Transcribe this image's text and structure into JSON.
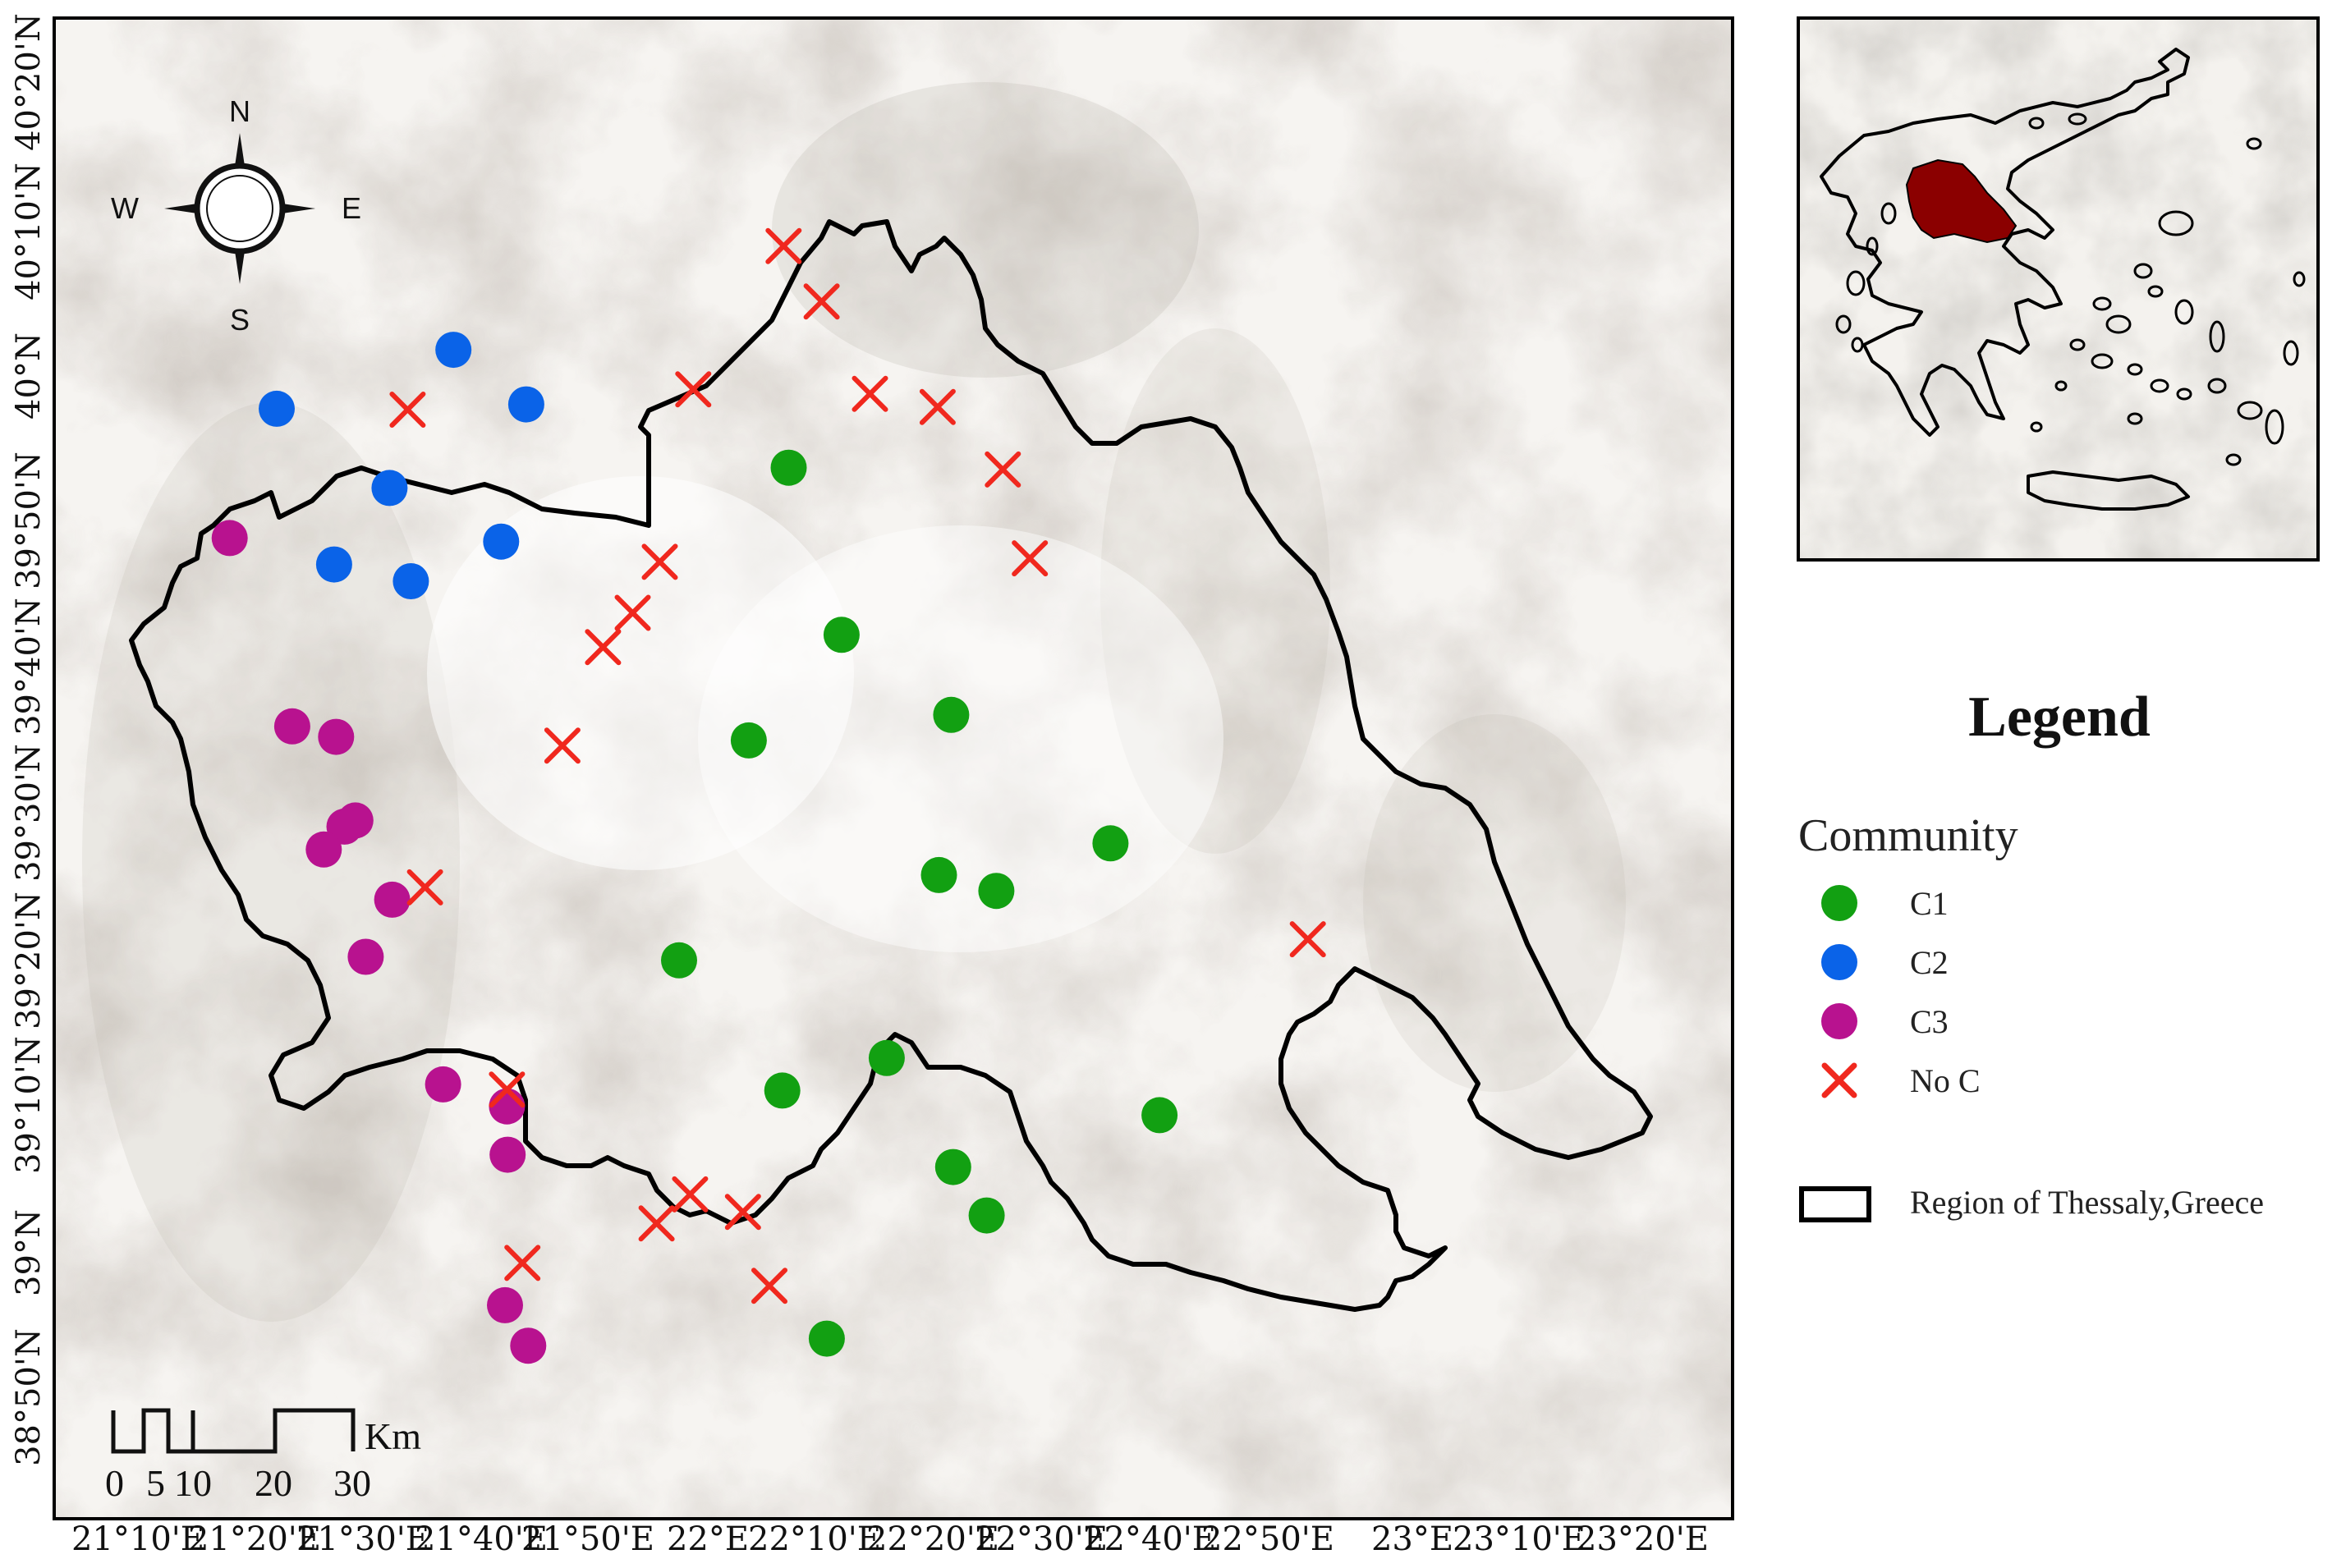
{
  "map": {
    "lat_ticks": [
      "40°20'N",
      "40°10'N",
      "40°N",
      "39°50'N",
      "39°40'N",
      "39°30'N",
      "39°20'N",
      "39°10'N",
      "39°N",
      "38°50'N"
    ],
    "lon_ticks": [
      "21°10'E",
      "21°20'E",
      "21°30'E",
      "21°40'E",
      "21°50'E",
      "22°E",
      "22°10'E",
      "22°20'E",
      "22°30'E",
      "22°40'E",
      "22°50'E",
      "23°E",
      "23°10'E",
      "23°20'E"
    ],
    "compass": {
      "n": "N",
      "s": "S",
      "e": "E",
      "w": "W"
    },
    "scale_bar": {
      "unit": "Km",
      "labels": [
        "0",
        "5",
        "10",
        "20",
        "30"
      ]
    },
    "colors": {
      "C1": "#12a012",
      "C2": "#0a63e8",
      "C3": "#b8128f",
      "NoC": "#f0281e",
      "region_outline": "#000000",
      "inset_region": "#8b0000"
    },
    "points": {
      "C1": [
        [
          22.209,
          39.895
        ],
        [
          22.291,
          39.705
        ],
        [
          22.147,
          39.585
        ],
        [
          22.461,
          39.614
        ],
        [
          22.708,
          39.468
        ],
        [
          22.442,
          39.432
        ],
        [
          22.531,
          39.414
        ],
        [
          22.039,
          39.335
        ],
        [
          22.361,
          39.224
        ],
        [
          22.199,
          39.187
        ],
        [
          22.784,
          39.159
        ],
        [
          22.464,
          39.1
        ],
        [
          22.516,
          39.045
        ],
        [
          22.268,
          38.905
        ]
      ],
      "C2": [
        [
          21.689,
          40.029
        ],
        [
          21.802,
          39.967
        ],
        [
          21.415,
          39.962
        ],
        [
          21.59,
          39.872
        ],
        [
          21.763,
          39.811
        ],
        [
          21.504,
          39.785
        ],
        [
          21.623,
          39.766
        ]
      ],
      "C3": [
        [
          21.342,
          39.815
        ],
        [
          21.439,
          39.601
        ],
        [
          21.507,
          39.589
        ],
        [
          21.537,
          39.494
        ],
        [
          21.52,
          39.487
        ],
        [
          21.488,
          39.461
        ],
        [
          21.594,
          39.404
        ],
        [
          21.553,
          39.339
        ],
        [
          21.673,
          39.194
        ],
        [
          21.772,
          39.169
        ],
        [
          21.773,
          39.114
        ],
        [
          21.769,
          38.943
        ],
        [
          21.805,
          38.897
        ]
      ],
      "NoC": [
        [
          22.201,
          40.147
        ],
        [
          22.26,
          40.084
        ],
        [
          22.061,
          39.984
        ],
        [
          22.335,
          39.979
        ],
        [
          22.44,
          39.964
        ],
        [
          21.618,
          39.961
        ],
        [
          22.541,
          39.893
        ],
        [
          22.583,
          39.792
        ],
        [
          22.009,
          39.788
        ],
        [
          21.967,
          39.73
        ],
        [
          21.921,
          39.691
        ],
        [
          21.858,
          39.579
        ],
        [
          21.645,
          39.418
        ],
        [
          23.014,
          39.359
        ],
        [
          21.772,
          39.188
        ],
        [
          22.056,
          39.069
        ],
        [
          22.138,
          39.049
        ],
        [
          22.004,
          39.036
        ],
        [
          21.796,
          38.991
        ],
        [
          22.179,
          38.965
        ]
      ]
    }
  },
  "legend": {
    "title": "Legend",
    "group_title": "Community",
    "items": [
      {
        "key": "C1",
        "label": "C1"
      },
      {
        "key": "C2",
        "label": "C2"
      },
      {
        "key": "C3",
        "label": "C3"
      },
      {
        "key": "NoC",
        "label": "No C"
      }
    ],
    "region_label": "Region of Thessaly,Greece"
  }
}
